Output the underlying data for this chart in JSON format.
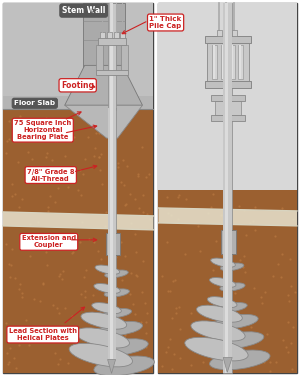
{
  "bg_color": "#ffffff",
  "soil_color": "#9b6030",
  "soil_dot_color": "#b87840",
  "concrete_light": "#c8c8c8",
  "concrete_mid": "#b0b0b0",
  "concrete_dark": "#989898",
  "steel_color": "#c0c0c0",
  "steel_light": "#dcdcdc",
  "steel_dark": "#909090",
  "border_color": "#444444",
  "label_bg": "#ffffff",
  "label_border": "#cc2222",
  "label_text_color": "#cc2222",
  "arrow_color": "#cc2222",
  "white_layer": "#e8e4d0",
  "stem_wall_dark": "#555555",
  "stem_wall_label_bg": "#555555",
  "stem_wall_label_fg": "#ffffff",
  "floor_slab_label_bg": "#555555",
  "floor_slab_label_fg": "#ffffff",
  "labels": {
    "stem_wall": "Stem Wall",
    "pile_cap": "1\" Thick\nPile Cap",
    "floor_slab": "Floor Slab",
    "footing": "Footing",
    "bearing_plate": "75 Square Inch\nHorizontal\nBearing Plate",
    "all_thread": "7/8\" Grade 8\nAll-Thread",
    "extension": "Extension and\nCoupler",
    "lead_section": "Lead Section with\nHelical Plates"
  }
}
